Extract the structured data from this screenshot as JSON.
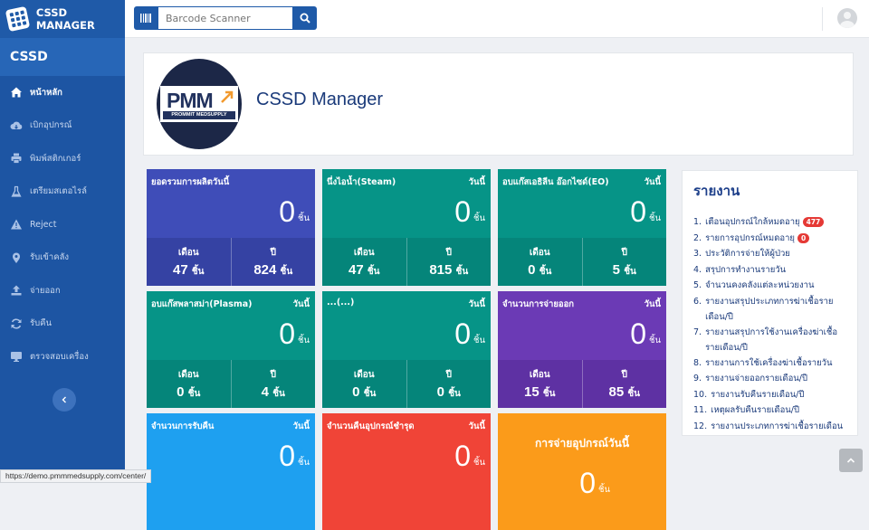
{
  "app": {
    "title": "CSSD MANAGER"
  },
  "search": {
    "placeholder": "Barcode Scanner"
  },
  "sidebar": {
    "header": "CSSD",
    "items": [
      {
        "label": "หน้าหลัก",
        "icon": "home-icon",
        "active": true
      },
      {
        "label": "เบิกอุปกรณ์",
        "icon": "cloud-download-icon"
      },
      {
        "label": "พิมพ์สติกเกอร์",
        "icon": "printer-icon"
      },
      {
        "label": "เตรียมสเตอไรล์",
        "icon": "flask-icon"
      },
      {
        "label": "Reject",
        "icon": "warning-icon"
      },
      {
        "label": "รับเข้าคลัง",
        "icon": "map-pin-icon"
      },
      {
        "label": "จ่ายออก",
        "icon": "upload-icon"
      },
      {
        "label": "รับคืน",
        "icon": "refresh-icon"
      },
      {
        "label": "ตรวจสอบเครื่อง",
        "icon": "monitor-icon"
      }
    ]
  },
  "header": {
    "title": "CSSD Manager",
    "logo_text": "PMM",
    "logo_sub": "PROMMIT MEDSUPPLY"
  },
  "tiles": [
    {
      "title": "ยอดรวมการผลิตวันนี้",
      "day": "",
      "value": "0",
      "unit": "ชิ้น",
      "month_label": "เดือน",
      "month_value": "47",
      "year_label": "ปี",
      "year_value": "824",
      "color": "#3f4db8"
    },
    {
      "title": "นึ่งไอน้ำ(Steam)",
      "day": "วันนี้",
      "value": "0",
      "unit": "ชิ้น",
      "month_label": "เดือน",
      "month_value": "47",
      "year_label": "ปี",
      "year_value": "815",
      "color": "#069487"
    },
    {
      "title": "อบแก๊สเอธิลีน อ๊อกไซด์(EO)",
      "day": "วันนี้",
      "value": "0",
      "unit": "ชิ้น",
      "month_label": "เดือน",
      "month_value": "0",
      "year_label": "ปี",
      "year_value": "5",
      "color": "#069487"
    },
    {
      "title": "อบแก๊สพลาสม่า(Plasma)",
      "day": "วันนี้",
      "value": "0",
      "unit": "ชิ้น",
      "month_label": "เดือน",
      "month_value": "0",
      "year_label": "ปี",
      "year_value": "4",
      "color": "#069487"
    },
    {
      "title": "...(...)",
      "day": "วันนี้",
      "value": "0",
      "unit": "ชิ้น",
      "month_label": "เดือน",
      "month_value": "0",
      "year_label": "ปี",
      "year_value": "0",
      "color": "#069487"
    },
    {
      "title": "จำนวนการจ่ายออก",
      "day": "วันนี้",
      "value": "0",
      "unit": "ชิ้น",
      "month_label": "เดือน",
      "month_value": "15",
      "year_label": "ปี",
      "year_value": "85",
      "color": "#6b3ab5"
    },
    {
      "title": "จำนวนการรับคืน",
      "day": "วันนี้",
      "value": "0",
      "unit": "ชิ้น",
      "color": "#1ea0f0"
    },
    {
      "title": "จำนวนคืนอุปกรณ์ชำรุด",
      "day": "วันนี้",
      "value": "0",
      "unit": "ชิ้น",
      "color": "#f04437"
    },
    {
      "title": "การจ่ายอุปกรณ์วันนี้",
      "value": "0",
      "unit": "ชิ้น",
      "color": "#fb9b1a"
    }
  ],
  "report": {
    "title": "รายงาน",
    "items": [
      {
        "n": "1.",
        "label": "เตือนอุปกรณ์ใกล้หมดอายุ",
        "badge": "477"
      },
      {
        "n": "2.",
        "label": "รายการอุปกรณ์หมดอายุ",
        "badge": "0"
      },
      {
        "n": "3.",
        "label": "ประวัติการจ่ายให้ผู้ป่วย"
      },
      {
        "n": "4.",
        "label": "สรุปการทำงานรายวัน"
      },
      {
        "n": "5.",
        "label": "จำนวนคงคลังแต่ละหน่วยงาน"
      },
      {
        "n": "6.",
        "label": "รายงานสรุปประเภทการฆ่าเชื้อรายเดือน/ปี"
      },
      {
        "n": "7.",
        "label": "รายงานสรุปการใช้งานเครื่องฆ่าเชื้อรายเดือน/ปี"
      },
      {
        "n": "8.",
        "label": "รายงานการใช้เครื่องฆ่าเชื้อรายวัน"
      },
      {
        "n": "9.",
        "label": "รายงานจ่ายออกรายเดือน/ปี"
      },
      {
        "n": "10.",
        "label": "รายงานรับคืนรายเดือน/ปี"
      },
      {
        "n": "11.",
        "label": "เหตุผลรับคืนรายเดือน/ปี"
      },
      {
        "n": "12.",
        "label": "รายงานประเภทการฆ่าเชื้อรายเดือน"
      }
    ]
  },
  "statusbar": {
    "url": "https://demo.pmmmedsupply.com/center/"
  }
}
